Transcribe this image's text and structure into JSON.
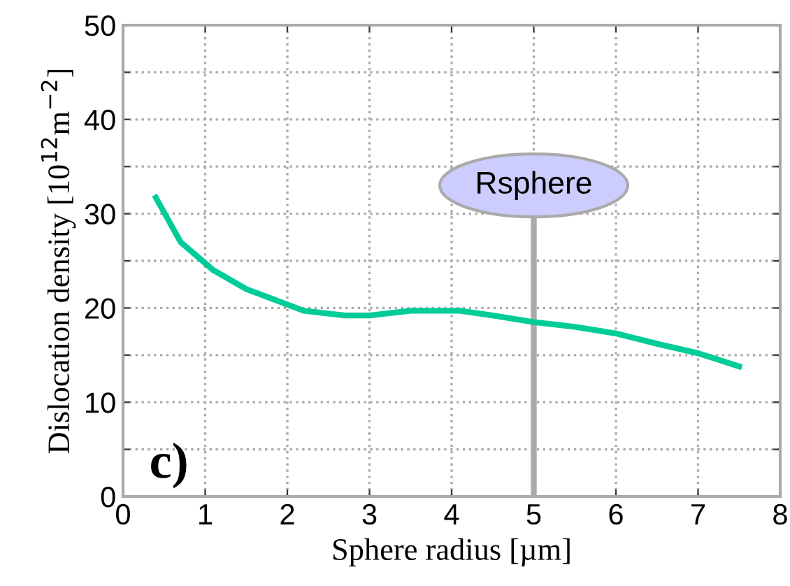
{
  "chart_data": {
    "type": "line",
    "xlabel": "Sphere radius [µm]",
    "ylabel": "Dislocation density [10$^{12}$m$^{−2}$]",
    "x": [
      0.4,
      0.7,
      1.1,
      1.5,
      2.2,
      2.7,
      3.0,
      3.5,
      4.1,
      4.5,
      5.0,
      5.5,
      6.0,
      6.5,
      7.0,
      7.5
    ],
    "series": [
      {
        "color": "#00cc99",
        "values": [
          31.7,
          27.0,
          24.0,
          22.0,
          19.7,
          19.2,
          19.2,
          19.7,
          19.7,
          19.2,
          18.5,
          18.0,
          17.3,
          16.2,
          15.2,
          13.8
        ]
      }
    ],
    "xlim": [
      0,
      8
    ],
    "xticks": [
      0,
      1,
      2,
      3,
      4,
      5,
      6,
      7,
      8
    ],
    "ylim": [
      0,
      50
    ],
    "yticks": [
      0,
      {
        "value": 5,
        "label": null
      },
      10,
      {
        "value": 15,
        "label": null
      },
      20,
      {
        "value": 25,
        "label": null
      },
      30,
      {
        "value": 35,
        "label": null
      },
      40,
      {
        "value": 45,
        "label": null
      },
      50
    ],
    "ref_lines": [
      {
        "axis": "x",
        "value": 5,
        "label": "Rsphere",
        "color": "#aaaaaa"
      }
    ],
    "annotations": [
      "c)"
    ],
    "grid": true,
    "legend": false,
    "marker": "none",
    "line_style": "solid"
  }
}
